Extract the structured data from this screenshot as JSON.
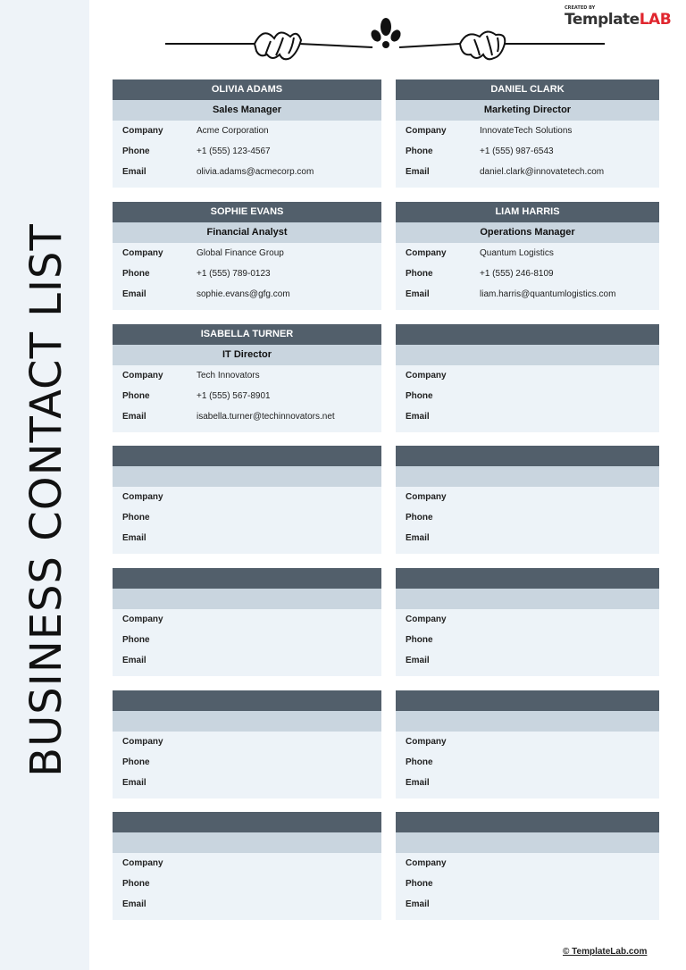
{
  "title": "BUSINESS CONTACT LIST",
  "logo": {
    "created_by": "CREATED BY",
    "brand_a": "Template",
    "brand_b": "LAB"
  },
  "labels": {
    "company": "Company",
    "phone": "Phone",
    "email": "Email"
  },
  "cards": [
    {
      "name": "OLIVIA ADAMS",
      "role": "Sales Manager",
      "company": "Acme Corporation",
      "phone": "+1 (555) 123-4567",
      "email": "olivia.adams@acmecorp.com"
    },
    {
      "name": "DANIEL CLARK",
      "role": "Marketing Director",
      "company": "InnovateTech Solutions",
      "phone": "+1 (555) 987-6543",
      "email": "daniel.clark@innovatetech.com"
    },
    {
      "name": "SOPHIE EVANS",
      "role": "Financial Analyst",
      "company": "Global Finance Group",
      "phone": "+1 (555) 789-0123",
      "email": "sophie.evans@gfg.com"
    },
    {
      "name": "LIAM HARRIS",
      "role": "Operations Manager",
      "company": "Quantum Logistics",
      "phone": "+1 (555) 246-8109",
      "email": "liam.harris@quantumlogistics.com"
    },
    {
      "name": "ISABELLA TURNER",
      "role": "IT Director",
      "company": "Tech Innovators",
      "phone": "+1 (555) 567-8901",
      "email": "isabella.turner@techinnovators.net"
    },
    {},
    {},
    {},
    {},
    {},
    {},
    {},
    {},
    {}
  ],
  "footer": "© TemplateLab.com",
  "colors": {
    "header": "#525f6b",
    "subheader": "#c9d5df",
    "body": "#edf3f8",
    "sidebar": "#eef3f8",
    "logo_accent": "#e0262e"
  }
}
